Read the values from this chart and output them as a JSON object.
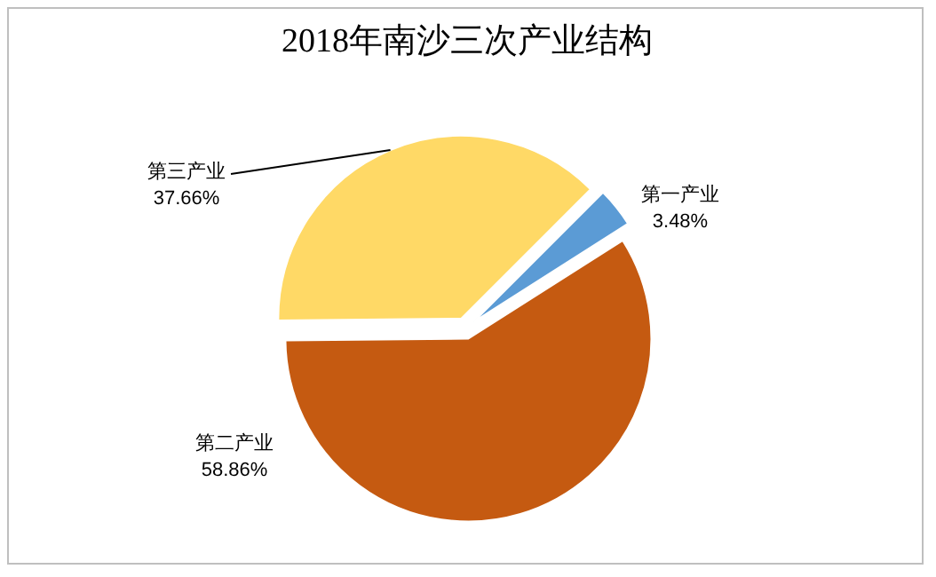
{
  "chart_data": {
    "type": "pie",
    "title": "2018年南沙三次产业结构",
    "categories": [
      "第一产业",
      "第二产业",
      "第三产业"
    ],
    "values": [
      3.48,
      58.86,
      37.66
    ],
    "value_labels": [
      "3.48%",
      "58.86%",
      "37.66%"
    ],
    "colors": [
      "#5b9bd5",
      "#c55a11",
      "#ffd966"
    ]
  }
}
